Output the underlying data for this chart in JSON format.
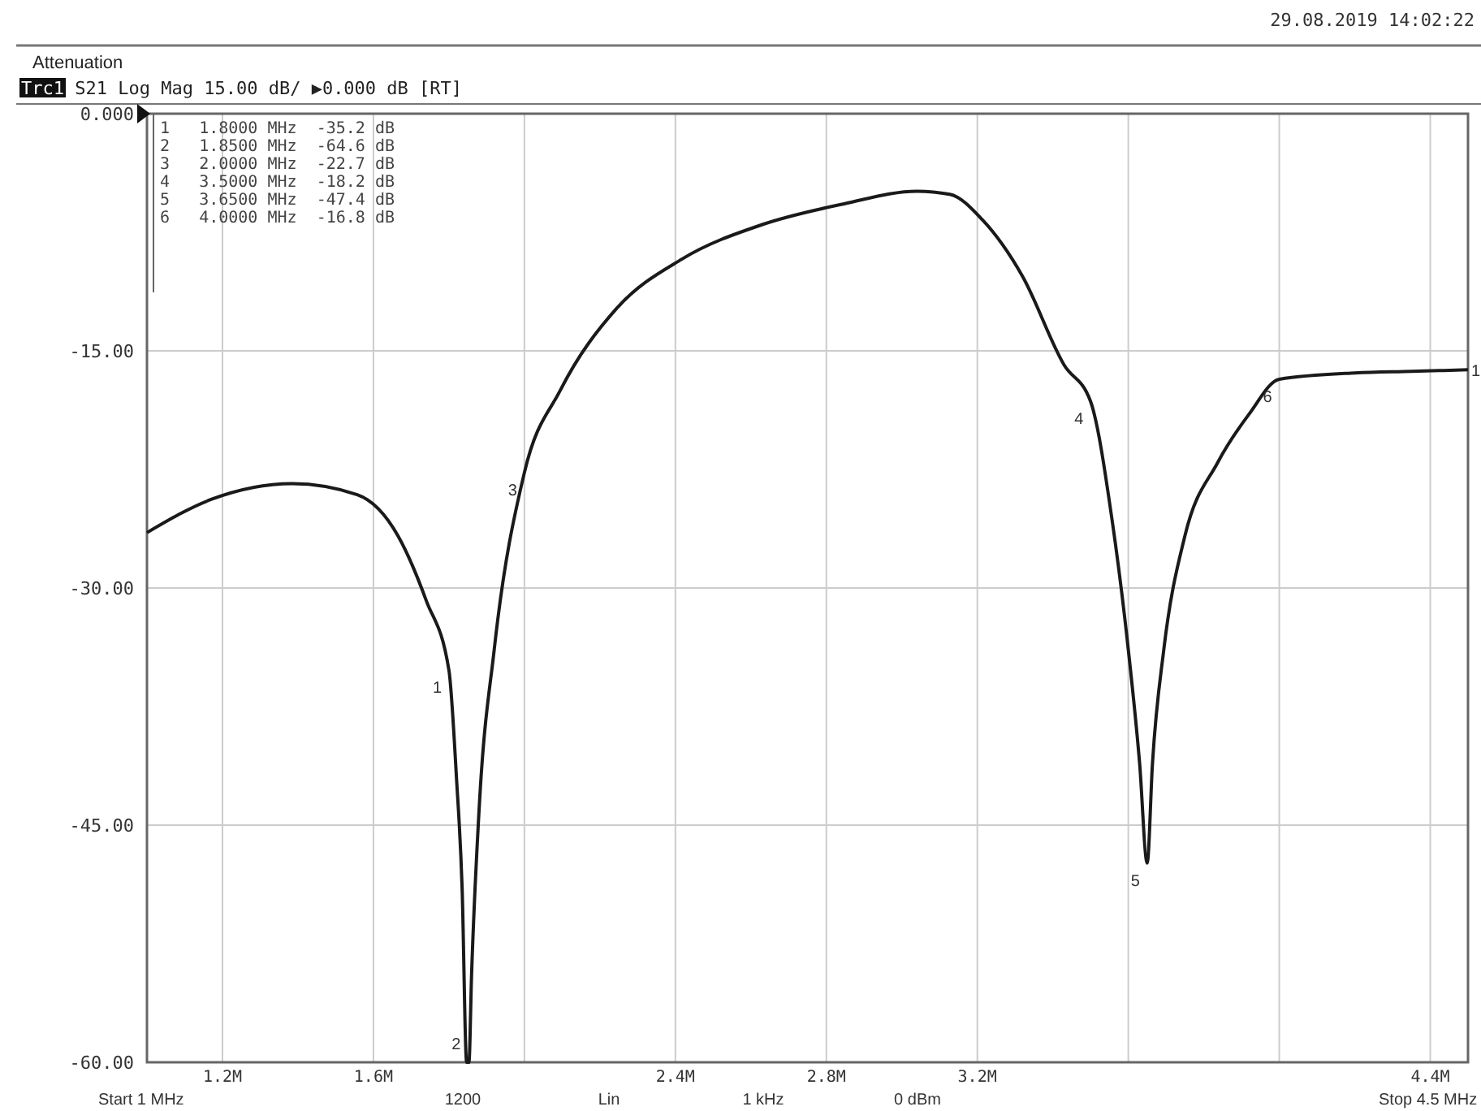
{
  "chart_data": {
    "type": "line",
    "title": "Attenuation",
    "subtitle": "Trc1 S21 Log Mag 15.00 dB/ ▶0.000 dB [RT]",
    "x": [
      1.0,
      1.17,
      1.385,
      1.557,
      1.665,
      1.74,
      1.8,
      1.82,
      1.835,
      1.847,
      1.853,
      1.86,
      1.88,
      1.92,
      2.0,
      2.095,
      2.245,
      2.417,
      2.632,
      2.847,
      3.04,
      3.127,
      3.213,
      3.32,
      3.43,
      3.5,
      3.557,
      3.6,
      3.63,
      3.65,
      3.664,
      3.694,
      3.75,
      3.836,
      3.92,
      4.0,
      4.2,
      4.35,
      4.5
    ],
    "series": [
      {
        "color": "#1a1a1a",
        "values": [
          -26.5,
          -24.4,
          -23.4,
          -24.1,
          -26.7,
          -30.8,
          -35.2,
          -42,
          -49,
          -60,
          -60,
          -54.5,
          -44,
          -33.9,
          -22.7,
          -17.5,
          -12.3,
          -9.2,
          -7.0,
          -5.7,
          -4.9,
          -5.1,
          -6.7,
          -10.3,
          -15.9,
          -18.2,
          -25.7,
          -33.9,
          -41.1,
          -47.4,
          -41.1,
          -33.9,
          -26.7,
          -22.1,
          -19.0,
          -16.8,
          -16.4,
          -16.3,
          -16.2
        ]
      }
    ],
    "xlim": [
      1,
      4.5
    ],
    "xticks": [
      {
        "value": 1.2,
        "label": "1.2M"
      },
      {
        "value": 1.6,
        "label": "1.6M"
      },
      {
        "value": 2.0,
        "label": null
      },
      {
        "value": 2.4,
        "label": "2.4M"
      },
      {
        "value": 2.8,
        "label": "2.8M"
      },
      {
        "value": 3.2,
        "label": "3.2M"
      },
      {
        "value": 3.6,
        "label": null
      },
      {
        "value": 4.0,
        "label": null
      },
      {
        "value": 4.4,
        "label": "4.4M"
      }
    ],
    "ylim": [
      -60,
      0
    ],
    "yticks": [
      {
        "value": -60,
        "label": "-60.00"
      },
      {
        "value": -45,
        "label": "-45.00"
      },
      {
        "value": -30,
        "label": "-30.00"
      },
      {
        "value": -15,
        "label": "-15.00"
      },
      {
        "value": 0,
        "label": "0.000"
      }
    ],
    "grid": true,
    "marker": "none",
    "line_style": "solid",
    "annotations": [
      "29.08.2019 14:02:22",
      "1   1.8000 MHz  -35.2 dB",
      "2   1.8500 MHz  -64.6 dB",
      "3   2.0000 MHz  -22.7 dB",
      "4   3.5000 MHz  -18.2 dB",
      "5   3.6500 MHz  -47.4 dB",
      "6   4.0000 MHz  -16.8 dB",
      "Start 1 MHz",
      "1200",
      "Lin",
      "1 kHz",
      "0 dBm",
      "Stop 4.5 MHz",
      {
        "text": "1",
        "x": 1.8,
        "y": -35.2
      },
      {
        "text": "2",
        "x": 1.85
      },
      {
        "text": "3",
        "x": 2.0,
        "y": -22.7
      },
      {
        "text": "4",
        "x": 3.5,
        "y": -18.2
      },
      {
        "text": "5",
        "x": 3.65,
        "y": -47.4
      },
      {
        "text": "6",
        "x": 4.0,
        "y": -16.8
      },
      {
        "text": "1",
        "x": 4.5,
        "y": -16.2
      }
    ]
  }
}
